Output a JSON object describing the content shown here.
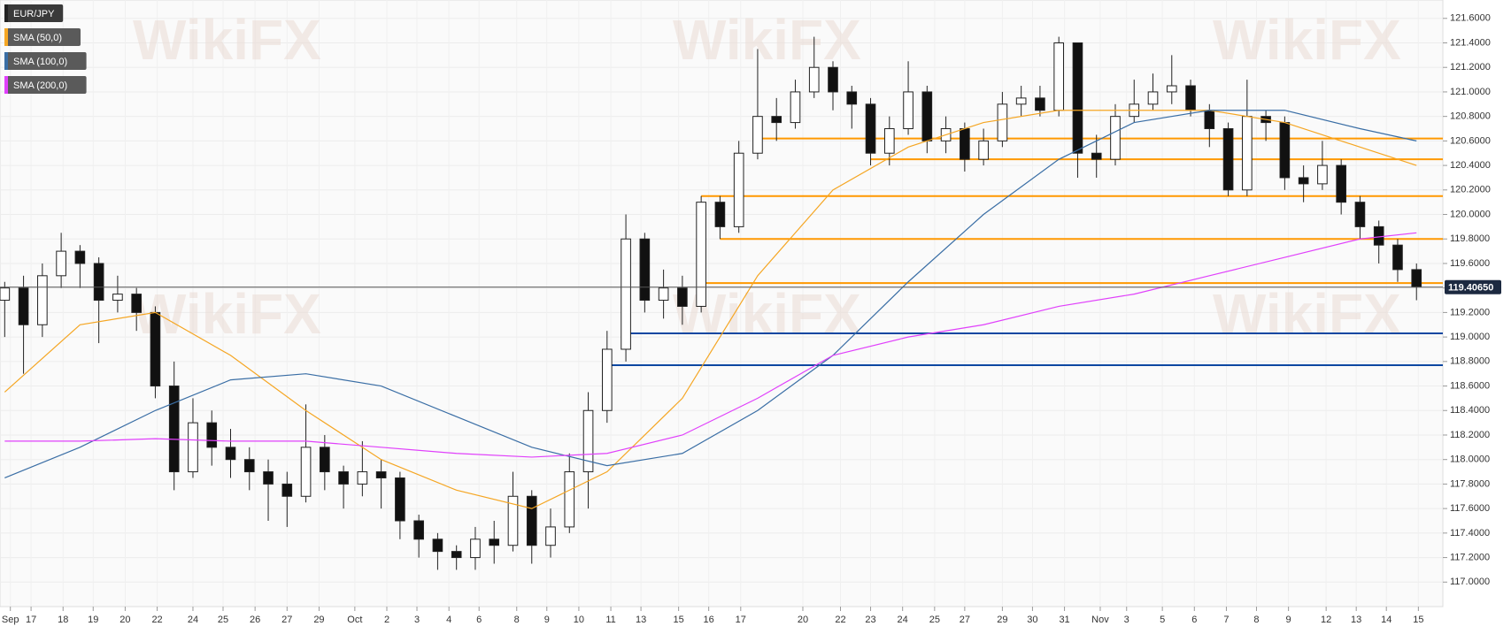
{
  "chart_data": {
    "type": "candlestick",
    "watermark": "WikiFX",
    "xlim": [
      -0.25,
      76.4
    ],
    "ylim": [
      116.8,
      121.75
    ],
    "yticks": [
      {
        "value": 117.0,
        "label": "117.0000"
      },
      {
        "value": 117.2,
        "label": "117.2000"
      },
      {
        "value": 117.4,
        "label": "117.4000"
      },
      {
        "value": 117.6,
        "label": "117.6000"
      },
      {
        "value": 117.8,
        "label": "117.8000"
      },
      {
        "value": 118.0,
        "label": "118.0000"
      },
      {
        "value": 118.2,
        "label": "118.2000"
      },
      {
        "value": 118.4,
        "label": "118.4000"
      },
      {
        "value": 118.6,
        "label": "118.6000"
      },
      {
        "value": 118.8,
        "label": "118.8000"
      },
      {
        "value": 119.0,
        "label": "119.0000"
      },
      {
        "value": 119.2,
        "label": "119.2000"
      },
      {
        "value": 119.4,
        "label": "119.4000"
      },
      {
        "value": 119.6,
        "label": "119.6000"
      },
      {
        "value": 119.8,
        "label": "119.8000"
      },
      {
        "value": 120.0,
        "label": "120.0000"
      },
      {
        "value": 120.2,
        "label": "120.2000"
      },
      {
        "value": 120.4,
        "label": "120.4000"
      },
      {
        "value": 120.6,
        "label": "120.6000"
      },
      {
        "value": 120.8,
        "label": "120.8000"
      },
      {
        "value": 121.0,
        "label": "121.0000"
      },
      {
        "value": 121.2,
        "label": "121.2000"
      },
      {
        "value": 121.4,
        "label": "121.4000"
      },
      {
        "value": 121.6,
        "label": "121.6000"
      }
    ],
    "xticks": [
      {
        "value": 0.3,
        "label": "Sep"
      },
      {
        "value": 1.4,
        "label": "17"
      },
      {
        "value": 3.1,
        "label": "18"
      },
      {
        "value": 4.7,
        "label": "19"
      },
      {
        "value": 6.4,
        "label": "20"
      },
      {
        "value": 8.1,
        "label": "22"
      },
      {
        "value": 10.0,
        "label": "24"
      },
      {
        "value": 11.6,
        "label": "25"
      },
      {
        "value": 13.3,
        "label": "26"
      },
      {
        "value": 15.0,
        "label": "27"
      },
      {
        "value": 16.7,
        "label": "29"
      },
      {
        "value": 18.6,
        "label": "Oct"
      },
      {
        "value": 20.3,
        "label": "2"
      },
      {
        "value": 21.9,
        "label": "3"
      },
      {
        "value": 23.6,
        "label": "4"
      },
      {
        "value": 25.2,
        "label": "6"
      },
      {
        "value": 27.2,
        "label": "8"
      },
      {
        "value": 28.8,
        "label": "9"
      },
      {
        "value": 30.5,
        "label": "10"
      },
      {
        "value": 32.2,
        "label": "11"
      },
      {
        "value": 33.8,
        "label": "13"
      },
      {
        "value": 35.8,
        "label": "15"
      },
      {
        "value": 37.4,
        "label": "16"
      },
      {
        "value": 39.1,
        "label": "17"
      },
      {
        "value": 42.4,
        "label": "20"
      },
      {
        "value": 44.4,
        "label": "22"
      },
      {
        "value": 46.0,
        "label": "23"
      },
      {
        "value": 47.7,
        "label": "24"
      },
      {
        "value": 49.4,
        "label": "25"
      },
      {
        "value": 51.0,
        "label": "27"
      },
      {
        "value": 53.0,
        "label": "29"
      },
      {
        "value": 54.6,
        "label": "30"
      },
      {
        "value": 56.3,
        "label": "31"
      },
      {
        "value": 58.2,
        "label": "Nov"
      },
      {
        "value": 59.6,
        "label": "3"
      },
      {
        "value": 61.5,
        "label": "5"
      },
      {
        "value": 63.2,
        "label": "6"
      },
      {
        "value": 64.9,
        "label": "7"
      },
      {
        "value": 66.5,
        "label": "8"
      },
      {
        "value": 68.2,
        "label": "9"
      },
      {
        "value": 70.2,
        "label": "12"
      },
      {
        "value": 71.8,
        "label": "13"
      },
      {
        "value": 73.4,
        "label": "14"
      },
      {
        "value": 75.1,
        "label": "15"
      }
    ],
    "grid": true,
    "candles": {
      "name": "EUR/JPY",
      "color": "#222222",
      "up_color": "#ffffff",
      "down_color": "#111111",
      "x": [
        0,
        1,
        2,
        3,
        4,
        5,
        6,
        7,
        8,
        9,
        10,
        11,
        12,
        13,
        14,
        15,
        16,
        17,
        18,
        19,
        20,
        21,
        22,
        23,
        24,
        25,
        26,
        27,
        28,
        29,
        30,
        31,
        32,
        33,
        34,
        35,
        36,
        37,
        38,
        39,
        40,
        41,
        42,
        43,
        44,
        45,
        46,
        47,
        48,
        49,
        50,
        51,
        52,
        53,
        54,
        55,
        56,
        57,
        58,
        59,
        60,
        61,
        62,
        63,
        64,
        65,
        66,
        67,
        68,
        69,
        70,
        71,
        72,
        73,
        74,
        75
      ],
      "open": [
        119.3,
        119.4,
        119.1,
        119.5,
        119.7,
        119.6,
        119.3,
        119.35,
        119.2,
        118.6,
        117.9,
        118.3,
        118.1,
        118.0,
        117.9,
        117.8,
        117.7,
        118.1,
        117.9,
        117.8,
        117.9,
        117.85,
        117.5,
        117.35,
        117.25,
        117.2,
        117.35,
        117.3,
        117.7,
        117.3,
        117.45,
        117.9,
        118.4,
        118.9,
        119.8,
        119.3,
        119.4,
        119.25,
        120.1,
        119.9,
        120.5,
        120.8,
        120.75,
        121.0,
        121.2,
        121.0,
        120.9,
        120.5,
        120.7,
        121.0,
        120.6,
        120.7,
        120.45,
        120.6,
        120.9,
        120.95,
        120.85,
        121.4,
        120.5,
        120.45,
        120.8,
        120.9,
        121.0,
        121.05,
        120.85,
        120.7,
        120.2,
        120.8,
        120.75,
        120.3,
        120.25,
        120.4,
        120.1,
        119.9,
        119.75,
        119.55
      ],
      "high": [
        119.45,
        119.5,
        119.6,
        119.85,
        119.75,
        119.65,
        119.5,
        119.4,
        119.25,
        118.8,
        118.5,
        118.4,
        118.25,
        118.1,
        118.0,
        117.9,
        118.45,
        118.2,
        117.95,
        118.15,
        118.0,
        117.9,
        117.55,
        117.4,
        117.3,
        117.45,
        117.5,
        117.9,
        117.75,
        117.6,
        118.05,
        118.55,
        119.05,
        120.0,
        119.85,
        119.55,
        119.5,
        120.15,
        120.15,
        120.6,
        121.35,
        120.95,
        121.1,
        121.45,
        121.25,
        121.05,
        120.95,
        120.8,
        121.25,
        121.05,
        120.8,
        120.75,
        120.7,
        121.0,
        121.05,
        121.05,
        121.45,
        121.4,
        120.65,
        120.9,
        121.1,
        121.15,
        121.3,
        121.1,
        120.9,
        120.75,
        121.1,
        120.85,
        120.8,
        120.4,
        120.6,
        120.45,
        120.15,
        119.95,
        119.8,
        119.6
      ],
      "low": [
        119.0,
        118.7,
        119.0,
        119.4,
        119.4,
        118.95,
        119.2,
        119.05,
        118.5,
        117.75,
        117.85,
        117.95,
        117.85,
        117.75,
        117.5,
        117.45,
        117.65,
        117.75,
        117.6,
        117.7,
        117.6,
        117.35,
        117.2,
        117.1,
        117.1,
        117.1,
        117.15,
        117.25,
        117.15,
        117.2,
        117.4,
        117.6,
        118.3,
        118.8,
        119.2,
        119.15,
        119.1,
        119.2,
        119.8,
        119.85,
        120.45,
        120.6,
        120.7,
        120.95,
        120.85,
        120.7,
        120.4,
        120.4,
        120.65,
        120.5,
        120.5,
        120.35,
        120.4,
        120.55,
        120.8,
        120.8,
        120.8,
        120.3,
        120.3,
        120.4,
        120.75,
        120.85,
        120.9,
        120.8,
        120.55,
        120.15,
        120.15,
        120.6,
        120.2,
        120.1,
        120.2,
        120.0,
        119.8,
        119.6,
        119.45,
        119.3
      ],
      "close": [
        119.4,
        119.1,
        119.5,
        119.7,
        119.6,
        119.3,
        119.35,
        119.2,
        118.6,
        117.9,
        118.3,
        118.1,
        118.0,
        117.9,
        117.8,
        117.7,
        118.1,
        117.9,
        117.8,
        117.9,
        117.85,
        117.5,
        117.35,
        117.25,
        117.2,
        117.35,
        117.3,
        117.7,
        117.3,
        117.45,
        117.9,
        118.4,
        118.9,
        119.8,
        119.3,
        119.4,
        119.25,
        120.1,
        119.9,
        120.5,
        120.8,
        120.75,
        121.0,
        121.2,
        121.0,
        120.9,
        120.5,
        120.7,
        121.0,
        120.6,
        120.7,
        120.45,
        120.6,
        120.9,
        120.95,
        120.85,
        121.4,
        120.5,
        120.45,
        120.8,
        120.9,
        121.0,
        121.05,
        120.85,
        120.7,
        120.2,
        120.8,
        120.75,
        120.3,
        120.25,
        120.4,
        120.1,
        119.9,
        119.75,
        119.55,
        119.41
      ]
    },
    "series": [
      {
        "name": "SMA (50,0)",
        "color": "#f5a623",
        "x": [
          0,
          4,
          8,
          12,
          16,
          20,
          24,
          28,
          32,
          36,
          40,
          44,
          48,
          52,
          56,
          60,
          64,
          68,
          72,
          75
        ],
        "values": [
          118.55,
          119.1,
          119.2,
          118.85,
          118.4,
          118.0,
          117.75,
          117.6,
          117.9,
          118.5,
          119.5,
          120.2,
          120.55,
          120.75,
          120.85,
          120.85,
          120.85,
          120.75,
          120.55,
          120.4
        ]
      },
      {
        "name": "SMA (100,0)",
        "color": "#3a6ea5",
        "x": [
          0,
          4,
          8,
          12,
          16,
          20,
          24,
          28,
          32,
          36,
          40,
          44,
          48,
          52,
          56,
          60,
          64,
          68,
          72,
          75
        ],
        "values": [
          117.85,
          118.1,
          118.4,
          118.65,
          118.7,
          118.6,
          118.35,
          118.1,
          117.95,
          118.05,
          118.4,
          118.85,
          119.45,
          120.0,
          120.45,
          120.75,
          120.85,
          120.85,
          120.7,
          120.6
        ]
      },
      {
        "name": "SMA (200,0)",
        "color": "#e040fb",
        "x": [
          0,
          4,
          8,
          12,
          16,
          20,
          24,
          28,
          32,
          36,
          40,
          44,
          48,
          52,
          56,
          60,
          64,
          68,
          72,
          75
        ],
        "values": [
          118.15,
          118.15,
          118.17,
          118.15,
          118.15,
          118.1,
          118.05,
          118.02,
          118.05,
          118.2,
          118.5,
          118.85,
          119.0,
          119.1,
          119.25,
          119.35,
          119.5,
          119.65,
          119.8,
          119.85
        ]
      }
    ],
    "levels": [
      {
        "value": 120.62,
        "start": 40,
        "color": "#ff9800"
      },
      {
        "value": 120.45,
        "start": 46,
        "color": "#ff9800"
      },
      {
        "value": 120.15,
        "start": 37,
        "color": "#ff9800"
      },
      {
        "value": 119.8,
        "start": 38,
        "color": "#ff9800"
      },
      {
        "value": 119.44,
        "start": 37,
        "color": "#ff9800"
      },
      {
        "value": 119.03,
        "start": 33,
        "color": "#0d47a1"
      },
      {
        "value": 118.77,
        "start": 32,
        "color": "#0d47a1"
      }
    ],
    "last_price": {
      "value": 119.4065,
      "label": "119.40650",
      "color": "#1c2940"
    }
  }
}
